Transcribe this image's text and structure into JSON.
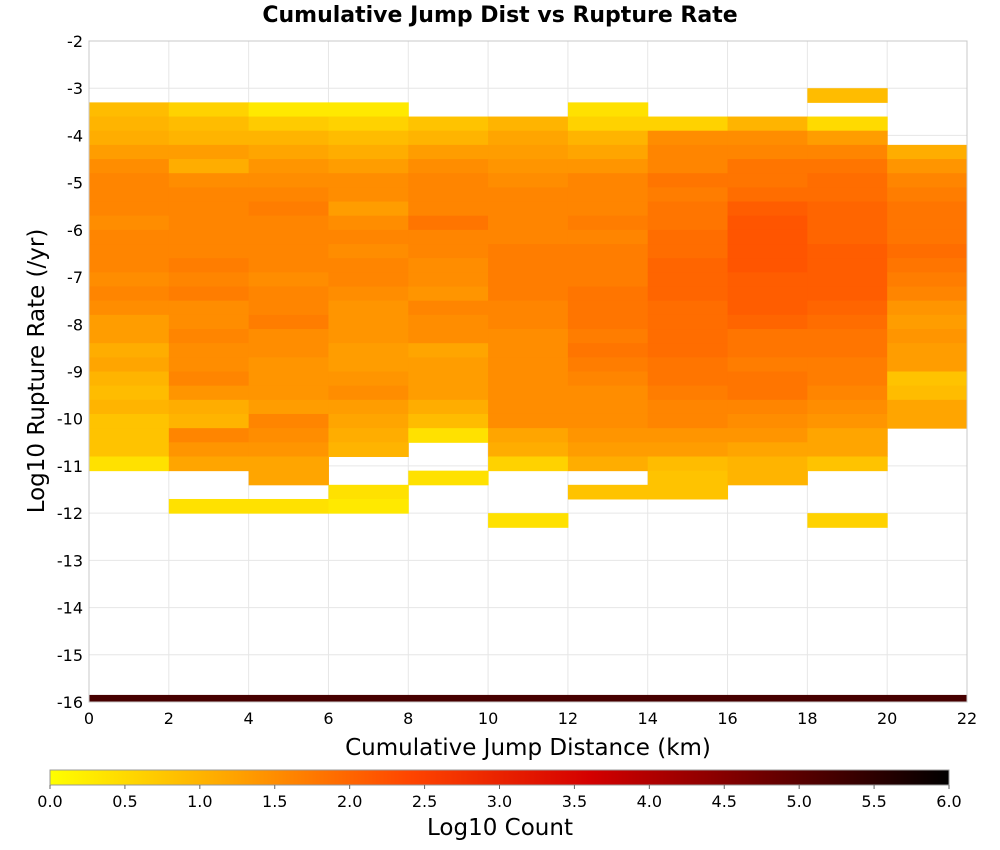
{
  "chart_data": {
    "type": "heatmap",
    "title": "Cumulative Jump Dist vs Rupture Rate",
    "xlabel": "Cumulative Jump Distance (km)",
    "ylabel": "Log10 Rupture Rate (/yr)",
    "xlim": [
      0,
      22
    ],
    "ylim": [
      -16,
      -2
    ],
    "x_ticks": [
      "0",
      "2",
      "4",
      "6",
      "8",
      "10",
      "12",
      "14",
      "16",
      "18",
      "20",
      "22"
    ],
    "y_ticks": [
      "-2",
      "-3",
      "-4",
      "-5",
      "-6",
      "-7",
      "-8",
      "-9",
      "-10",
      "-11",
      "-12",
      "-13",
      "-14",
      "-15",
      "-16"
    ],
    "grid": true,
    "x_bins": [
      0,
      2,
      4,
      6,
      8,
      10,
      12,
      14,
      16,
      18,
      20
    ],
    "x_bin_width": 2,
    "y_bin_height": 0.3,
    "columns": [
      {
        "x": 0,
        "y_top": -3.3,
        "values": [
          0.9,
          1.0,
          1.1,
          1.3,
          1.5,
          1.6,
          1.6,
          1.6,
          1.5,
          1.6,
          1.6,
          1.6,
          1.5,
          1.6,
          1.5,
          1.3,
          1.3,
          1.1,
          1.2,
          1.0,
          0.9,
          1.0,
          0.8,
          0.8,
          0.8,
          0.4
        ]
      },
      {
        "x": 2,
        "y_top": -3.3,
        "values": [
          0.6,
          0.9,
          1.0,
          1.3,
          1.1,
          1.5,
          1.6,
          1.6,
          1.6,
          1.6,
          1.6,
          1.7,
          1.6,
          1.7,
          1.5,
          1.5,
          1.6,
          1.5,
          1.5,
          1.6,
          1.4,
          1.1,
          1.0,
          1.6,
          1.4,
          1.2,
          null,
          null,
          0.4
        ]
      },
      {
        "x": 4,
        "y_top": -3.3,
        "values": [
          0.3,
          0.7,
          1.0,
          1.2,
          1.4,
          1.5,
          1.6,
          1.7,
          1.6,
          1.6,
          1.6,
          1.6,
          1.5,
          1.6,
          1.6,
          1.7,
          1.5,
          1.5,
          1.4,
          1.4,
          1.4,
          1.3,
          1.6,
          1.5,
          1.4,
          1.2,
          1.2,
          null,
          0.4
        ]
      },
      {
        "x": 6,
        "y_top": -3.3,
        "values": [
          0.3,
          0.6,
          0.9,
          1.1,
          1.3,
          1.5,
          1.5,
          1.3,
          1.5,
          1.6,
          1.5,
          1.6,
          1.6,
          1.5,
          1.4,
          1.4,
          1.4,
          1.3,
          1.3,
          1.4,
          1.5,
          1.3,
          1.2,
          1.1,
          1.0,
          null,
          null,
          0.4,
          0.3
        ]
      },
      {
        "x": 8,
        "y_top": -3.6,
        "values": [
          0.8,
          1.0,
          1.3,
          1.5,
          1.6,
          1.6,
          1.6,
          1.8,
          1.6,
          1.6,
          1.5,
          1.5,
          1.4,
          1.6,
          1.5,
          1.5,
          1.2,
          1.3,
          1.3,
          1.3,
          1.1,
          0.9,
          0.4,
          null,
          null,
          0.4
        ]
      },
      {
        "x": 10,
        "y_top": -3.6,
        "values": [
          1.0,
          1.2,
          1.3,
          1.4,
          1.5,
          1.6,
          1.6,
          1.6,
          1.6,
          1.7,
          1.7,
          1.7,
          1.7,
          1.6,
          1.6,
          1.5,
          1.5,
          1.5,
          1.5,
          1.5,
          1.5,
          1.5,
          1.2,
          1.1,
          0.6,
          null,
          null,
          null,
          0.4
        ]
      },
      {
        "x": 12,
        "y_top": -3.3,
        "values": [
          0.4,
          0.6,
          1.0,
          1.2,
          1.4,
          1.6,
          1.6,
          1.6,
          1.7,
          1.6,
          1.7,
          1.7,
          1.7,
          1.8,
          1.8,
          1.8,
          1.7,
          1.8,
          1.7,
          1.6,
          1.5,
          1.5,
          1.5,
          1.4,
          1.3,
          1.1,
          null,
          0.8
        ]
      },
      {
        "x": 14,
        "y_top": -3.6,
        "values": [
          0.6,
          1.5,
          1.6,
          1.6,
          1.8,
          1.7,
          1.8,
          1.8,
          1.9,
          1.9,
          2.0,
          2.0,
          2.0,
          1.9,
          1.9,
          1.9,
          1.9,
          1.8,
          1.8,
          1.7,
          1.6,
          1.6,
          1.4,
          1.3,
          0.9,
          0.8,
          0.8
        ]
      },
      {
        "x": 16,
        "y_top": -3.6,
        "values": [
          1.0,
          1.5,
          1.6,
          1.8,
          1.8,
          1.9,
          2.1,
          2.2,
          2.2,
          2.2,
          2.2,
          2.1,
          2.1,
          2.1,
          2.0,
          1.8,
          1.8,
          1.7,
          1.8,
          1.8,
          1.6,
          1.5,
          1.4,
          1.2,
          1.0,
          1.0
        ]
      },
      {
        "x": 18,
        "y_top": -3.0,
        "values": [
          0.9,
          null,
          0.5,
          1.3,
          1.6,
          1.8,
          1.9,
          1.9,
          2.0,
          2.0,
          2.0,
          2.1,
          2.1,
          2.1,
          2.1,
          2.0,
          1.9,
          1.8,
          1.8,
          1.7,
          1.7,
          1.6,
          1.5,
          1.4,
          1.2,
          1.2,
          0.8,
          null,
          null,
          null,
          0.6
        ]
      },
      {
        "x": 20,
        "y_top": -4.2,
        "values": [
          1.1,
          1.4,
          1.6,
          1.7,
          1.8,
          1.8,
          1.8,
          1.9,
          1.8,
          1.7,
          1.6,
          1.4,
          1.3,
          1.4,
          1.3,
          1.3,
          0.8,
          0.9,
          1.2,
          1.2
        ]
      }
    ],
    "baseline_row": {
      "y": -15.85,
      "value": 5.2
    },
    "colorbar": {
      "label": "Log10 Count",
      "min": 0.0,
      "max": 6.0,
      "ticks": [
        "0.0",
        "0.5",
        "1.0",
        "1.5",
        "2.0",
        "2.5",
        "3.0",
        "3.5",
        "4.0",
        "4.5",
        "5.0",
        "5.5",
        "6.0"
      ],
      "colors": [
        "#ffff00",
        "#ffa500",
        "#ff4500",
        "#d40000",
        "#6b0000",
        "#000000"
      ]
    }
  }
}
